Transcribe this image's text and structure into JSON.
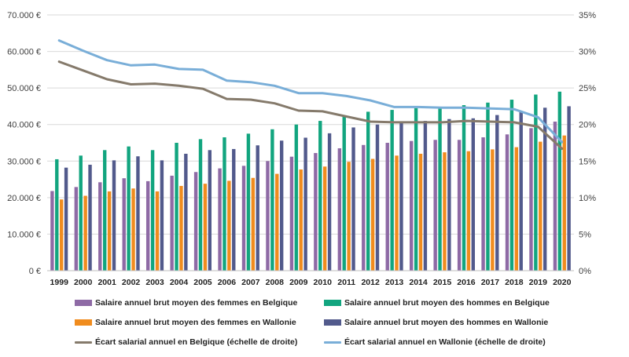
{
  "colors": {
    "femmes_belgique": "#8e6aa5",
    "hommes_belgique": "#12a57f",
    "femmes_wallonie": "#f08c1e",
    "hommes_wallonie": "#525a8c",
    "ecart_belgique": "#857a6b",
    "ecart_wallonie": "#79aed8",
    "grid": "#d9d9d9"
  },
  "legend": {
    "femmes_belgique": "Salaire annuel brut moyen des femmes en Belgique",
    "hommes_belgique": "Salaire annuel brut moyen des hommes en Belgique",
    "femmes_wallonie": "Salaire annuel brut moyen des femmes en Wallonie",
    "hommes_wallonie": "Salaire annuel brut moyen des hommes en Wallonie",
    "ecart_belgique": "Écart salarial annuel en Belgique (échelle de droite)",
    "ecart_wallonie": "Écart salarial annuel en Wallonie (échelle de droite)"
  },
  "chart_data": {
    "type": "bar",
    "categories": [
      "1999",
      "2000",
      "2001",
      "2002",
      "2003",
      "2004",
      "2005",
      "2006",
      "2007",
      "2008",
      "2009",
      "2010",
      "2011",
      "2012",
      "2013",
      "2014",
      "2015",
      "2016",
      "2017",
      "2018",
      "2019",
      "2020"
    ],
    "y_left": {
      "ylim": [
        0,
        70000
      ],
      "tick_labels": [
        "0 €",
        "10.000 €",
        "20.000 €",
        "30.000 €",
        "40.000 €",
        "50.000 €",
        "60.000 €",
        "70.000 €"
      ]
    },
    "y_right": {
      "ylim": [
        0,
        35
      ],
      "tick_labels": [
        "0%",
        "5%",
        "10%",
        "15%",
        "20%",
        "25%",
        "30%",
        "35%"
      ]
    },
    "grid": true,
    "legend_position": "bottom",
    "series": [
      {
        "name": "Salaire annuel brut moyen des femmes en Belgique",
        "type": "bar",
        "axis": "left",
        "values": [
          21800,
          22900,
          24200,
          25300,
          24500,
          26000,
          27000,
          28000,
          28700,
          30000,
          31200,
          32200,
          33500,
          34400,
          35000,
          35500,
          35800,
          35800,
          36500,
          37300,
          39000,
          40800
        ]
      },
      {
        "name": "Salaire annuel brut moyen des hommes en Belgique",
        "type": "bar",
        "axis": "left",
        "values": [
          30500,
          31500,
          33000,
          34000,
          33000,
          35000,
          36000,
          36500,
          37500,
          38700,
          40000,
          41000,
          42500,
          43500,
          44000,
          44500,
          44800,
          45300,
          46000,
          46800,
          48200,
          49000
        ]
      },
      {
        "name": "Salaire annuel brut moyen des femmes en Wallonie",
        "type": "bar",
        "axis": "left",
        "values": [
          19500,
          20500,
          21700,
          22500,
          21700,
          23200,
          23800,
          24600,
          25400,
          26500,
          27700,
          28500,
          29800,
          30600,
          31500,
          32000,
          32400,
          32700,
          33200,
          33800,
          35300,
          37000
        ]
      },
      {
        "name": "Salaire annuel brut moyen des hommes en Wallonie",
        "type": "bar",
        "axis": "left",
        "values": [
          28200,
          29000,
          30200,
          31300,
          30200,
          32000,
          33000,
          33300,
          34300,
          35600,
          36400,
          37600,
          39200,
          40000,
          40400,
          41000,
          41500,
          41700,
          42600,
          43400,
          44600,
          45000
        ]
      },
      {
        "name": "Écart salarial annuel en Belgique (échelle de droite)",
        "type": "line",
        "axis": "right",
        "values": [
          28.6,
          27.4,
          26.2,
          25.5,
          25.6,
          25.3,
          24.9,
          23.5,
          23.4,
          22.9,
          21.9,
          21.8,
          21.1,
          20.4,
          20.3,
          20.3,
          20.3,
          20.5,
          20.4,
          20.3,
          19.7,
          16.7
        ]
      },
      {
        "name": "Écart salarial annuel en Wallonie (échelle de droite)",
        "type": "line",
        "axis": "right",
        "values": [
          31.5,
          30.1,
          28.8,
          28.1,
          28.2,
          27.6,
          27.5,
          26.0,
          25.8,
          25.3,
          24.3,
          24.3,
          23.9,
          23.3,
          22.4,
          22.4,
          22.3,
          22.3,
          22.2,
          22.1,
          21.0,
          17.6
        ]
      }
    ]
  }
}
